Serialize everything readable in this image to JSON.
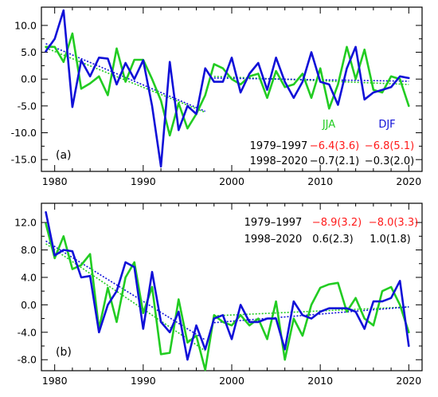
{
  "chart_data": [
    {
      "type": "line",
      "panel_label": "(a)",
      "x": [
        1979,
        1980,
        1981,
        1982,
        1983,
        1984,
        1985,
        1986,
        1987,
        1988,
        1989,
        1990,
        1991,
        1992,
        1993,
        1994,
        1995,
        1996,
        1997,
        1998,
        1999,
        2000,
        2001,
        2002,
        2003,
        2004,
        2005,
        2006,
        2007,
        2008,
        2009,
        2010,
        2011,
        2012,
        2013,
        2014,
        2015,
        2016,
        2017,
        2018,
        2019,
        2020
      ],
      "xlim": [
        1978.5,
        2021.5
      ],
      "ylim": [
        -17.2,
        13.4
      ],
      "xticks": [
        "1980",
        "1990",
        "2000",
        "2010",
        "2020"
      ],
      "xtick_values": [
        1980,
        1990,
        2000,
        2010,
        2020
      ],
      "yticks": [
        "10.0",
        "5.0",
        "0.0",
        "-5.0",
        "-10.0",
        "-15.0"
      ],
      "ytick_values": [
        10,
        5,
        0,
        -5,
        -10,
        -15
      ],
      "grid": false,
      "legend_position": "right, inside plot",
      "series": [
        {
          "name": "JJA",
          "color": "#22cc22",
          "values": [
            6.0,
            6.0,
            3.2,
            8.5,
            -1.8,
            -0.8,
            0.5,
            -3.0,
            5.7,
            -0.5,
            3.6,
            3.6,
            0.0,
            -4.0,
            -10.5,
            -4.5,
            -9.2,
            -6.5,
            -3.0,
            2.8,
            2.0,
            0.0,
            -1.0,
            0.5,
            1.0,
            -3.5,
            1.5,
            -1.5,
            -1.0,
            1.0,
            -3.5,
            2.0,
            -5.5,
            -1.0,
            6.0,
            0.0,
            5.5,
            -2.0,
            -2.5,
            0.5,
            0.0,
            -5.0
          ]
        },
        {
          "name": "DJF",
          "color": "#1010d8",
          "values": [
            5.2,
            7.5,
            12.8,
            -5.2,
            3.5,
            0.5,
            4.0,
            3.8,
            -1.0,
            3.0,
            0.0,
            3.5,
            -5.0,
            -16.3,
            3.2,
            -9.5,
            -5.0,
            -6.5,
            2.0,
            -0.5,
            -0.5,
            4.0,
            -2.5,
            1.0,
            3.0,
            -2.0,
            4.0,
            -0.5,
            -3.5,
            -0.5,
            5.0,
            -0.5,
            -1.0,
            -4.8,
            2.0,
            6.0,
            -3.8,
            -2.5,
            -2.0,
            -1.5,
            0.5,
            0.2
          ]
        }
      ],
      "trends": [
        {
          "series": "JJA",
          "start": 1979,
          "end": 1997,
          "from": 5.8,
          "to": -6.2,
          "color": "#22cc22"
        },
        {
          "series": "JJA",
          "start": 1998,
          "end": 2020,
          "from": 0.5,
          "to": -1.0,
          "color": "#22cc22"
        },
        {
          "series": "DJF",
          "start": 1979,
          "end": 1997,
          "from": 6.6,
          "to": -6.0,
          "color": "#1010d8"
        },
        {
          "series": "DJF",
          "start": 1998,
          "end": 2020,
          "from": 0.2,
          "to": -0.4,
          "color": "#1010d8"
        }
      ],
      "legend": [
        {
          "label": "JJA",
          "color": "#22cc22"
        },
        {
          "label": "DJF",
          "color": "#1010d8"
        }
      ],
      "annotations": [
        {
          "period": "1979–1997",
          "jja": "−6.4(3.6)",
          "djf": "−6.8(5.1)",
          "value_color": "#ff1a1a"
        },
        {
          "period": "1998–2020",
          "jja": "−0.7(2.1)",
          "djf": "−0.3(2.0)",
          "value_color": "#000000"
        }
      ]
    },
    {
      "type": "line",
      "panel_label": "(b)",
      "x": [
        1979,
        1980,
        1981,
        1982,
        1983,
        1984,
        1985,
        1986,
        1987,
        1988,
        1989,
        1990,
        1991,
        1992,
        1993,
        1994,
        1995,
        1996,
        1997,
        1998,
        1999,
        2000,
        2001,
        2002,
        2003,
        2004,
        2005,
        2006,
        2007,
        2008,
        2009,
        2010,
        2011,
        2012,
        2013,
        2014,
        2015,
        2016,
        2017,
        2018,
        2019,
        2020
      ],
      "xlim": [
        1978.5,
        2021.5
      ],
      "ylim": [
        -9.6,
        14.8
      ],
      "xticks": [
        "1980",
        "1990",
        "2000",
        "2010",
        "2020"
      ],
      "xtick_values": [
        1980,
        1990,
        2000,
        2010,
        2020
      ],
      "yticks": [
        "12.0",
        "8.0",
        "4.0",
        "0.0",
        "-4.0",
        "-8.0"
      ],
      "ytick_values": [
        12,
        8,
        4,
        0,
        -4,
        -8
      ],
      "grid": false,
      "legend_position": "none",
      "series": [
        {
          "name": "JJA",
          "color": "#22cc22",
          "values": [
            11.8,
            6.8,
            10.0,
            5.2,
            5.8,
            7.4,
            -3.5,
            2.5,
            -2.5,
            4.0,
            6.2,
            -1.2,
            2.6,
            -7.2,
            -7.0,
            0.8,
            -5.5,
            -4.5,
            -9.5,
            -1.5,
            -2.5,
            -3.0,
            -1.5,
            -3.0,
            -2.0,
            -5.0,
            0.5,
            -8.0,
            -2.0,
            -4.5,
            0.0,
            2.5,
            3.0,
            3.2,
            -1.0,
            1.0,
            -2.0,
            -3.0,
            2.0,
            2.6,
            0.0,
            -4.0
          ]
        },
        {
          "name": "DJF",
          "color": "#1010d8",
          "values": [
            13.5,
            7.2,
            8.0,
            7.8,
            4.0,
            4.2,
            -4.0,
            0.0,
            2.0,
            6.2,
            5.5,
            -3.5,
            4.8,
            -2.5,
            -4.0,
            -1.0,
            -8.0,
            -3.0,
            -6.5,
            -2.0,
            -1.5,
            -5.0,
            0.0,
            -2.5,
            -2.5,
            -2.0,
            -2.0,
            -6.5,
            0.5,
            -1.5,
            -2.0,
            -1.0,
            -0.5,
            -0.5,
            -0.5,
            -1.0,
            -3.5,
            0.5,
            0.5,
            1.0,
            3.5,
            -6.0
          ]
        }
      ],
      "trends": [
        {
          "series": "JJA",
          "start": 1979,
          "end": 1997,
          "from": 8.9,
          "to": -6.7,
          "color": "#22cc22"
        },
        {
          "series": "JJA",
          "start": 1998,
          "end": 2020,
          "from": -1.6,
          "to": -0.3,
          "color": "#22cc22"
        },
        {
          "series": "DJF",
          "start": 1979,
          "end": 1997,
          "from": 9.3,
          "to": -5.1,
          "color": "#1010d8"
        },
        {
          "series": "DJF",
          "start": 1998,
          "end": 2020,
          "from": -2.6,
          "to": -0.3,
          "color": "#1010d8"
        }
      ],
      "legend": [],
      "annotations": [
        {
          "period": "1979–1997",
          "jja": "−8.9(3.2)",
          "djf": "−8.0(3.3)",
          "value_color": "#ff1a1a"
        },
        {
          "period": "1998–2020",
          "jja": "0.6(2.3)",
          "djf": "1.0(1.8)",
          "value_color": "#000000"
        }
      ]
    }
  ]
}
